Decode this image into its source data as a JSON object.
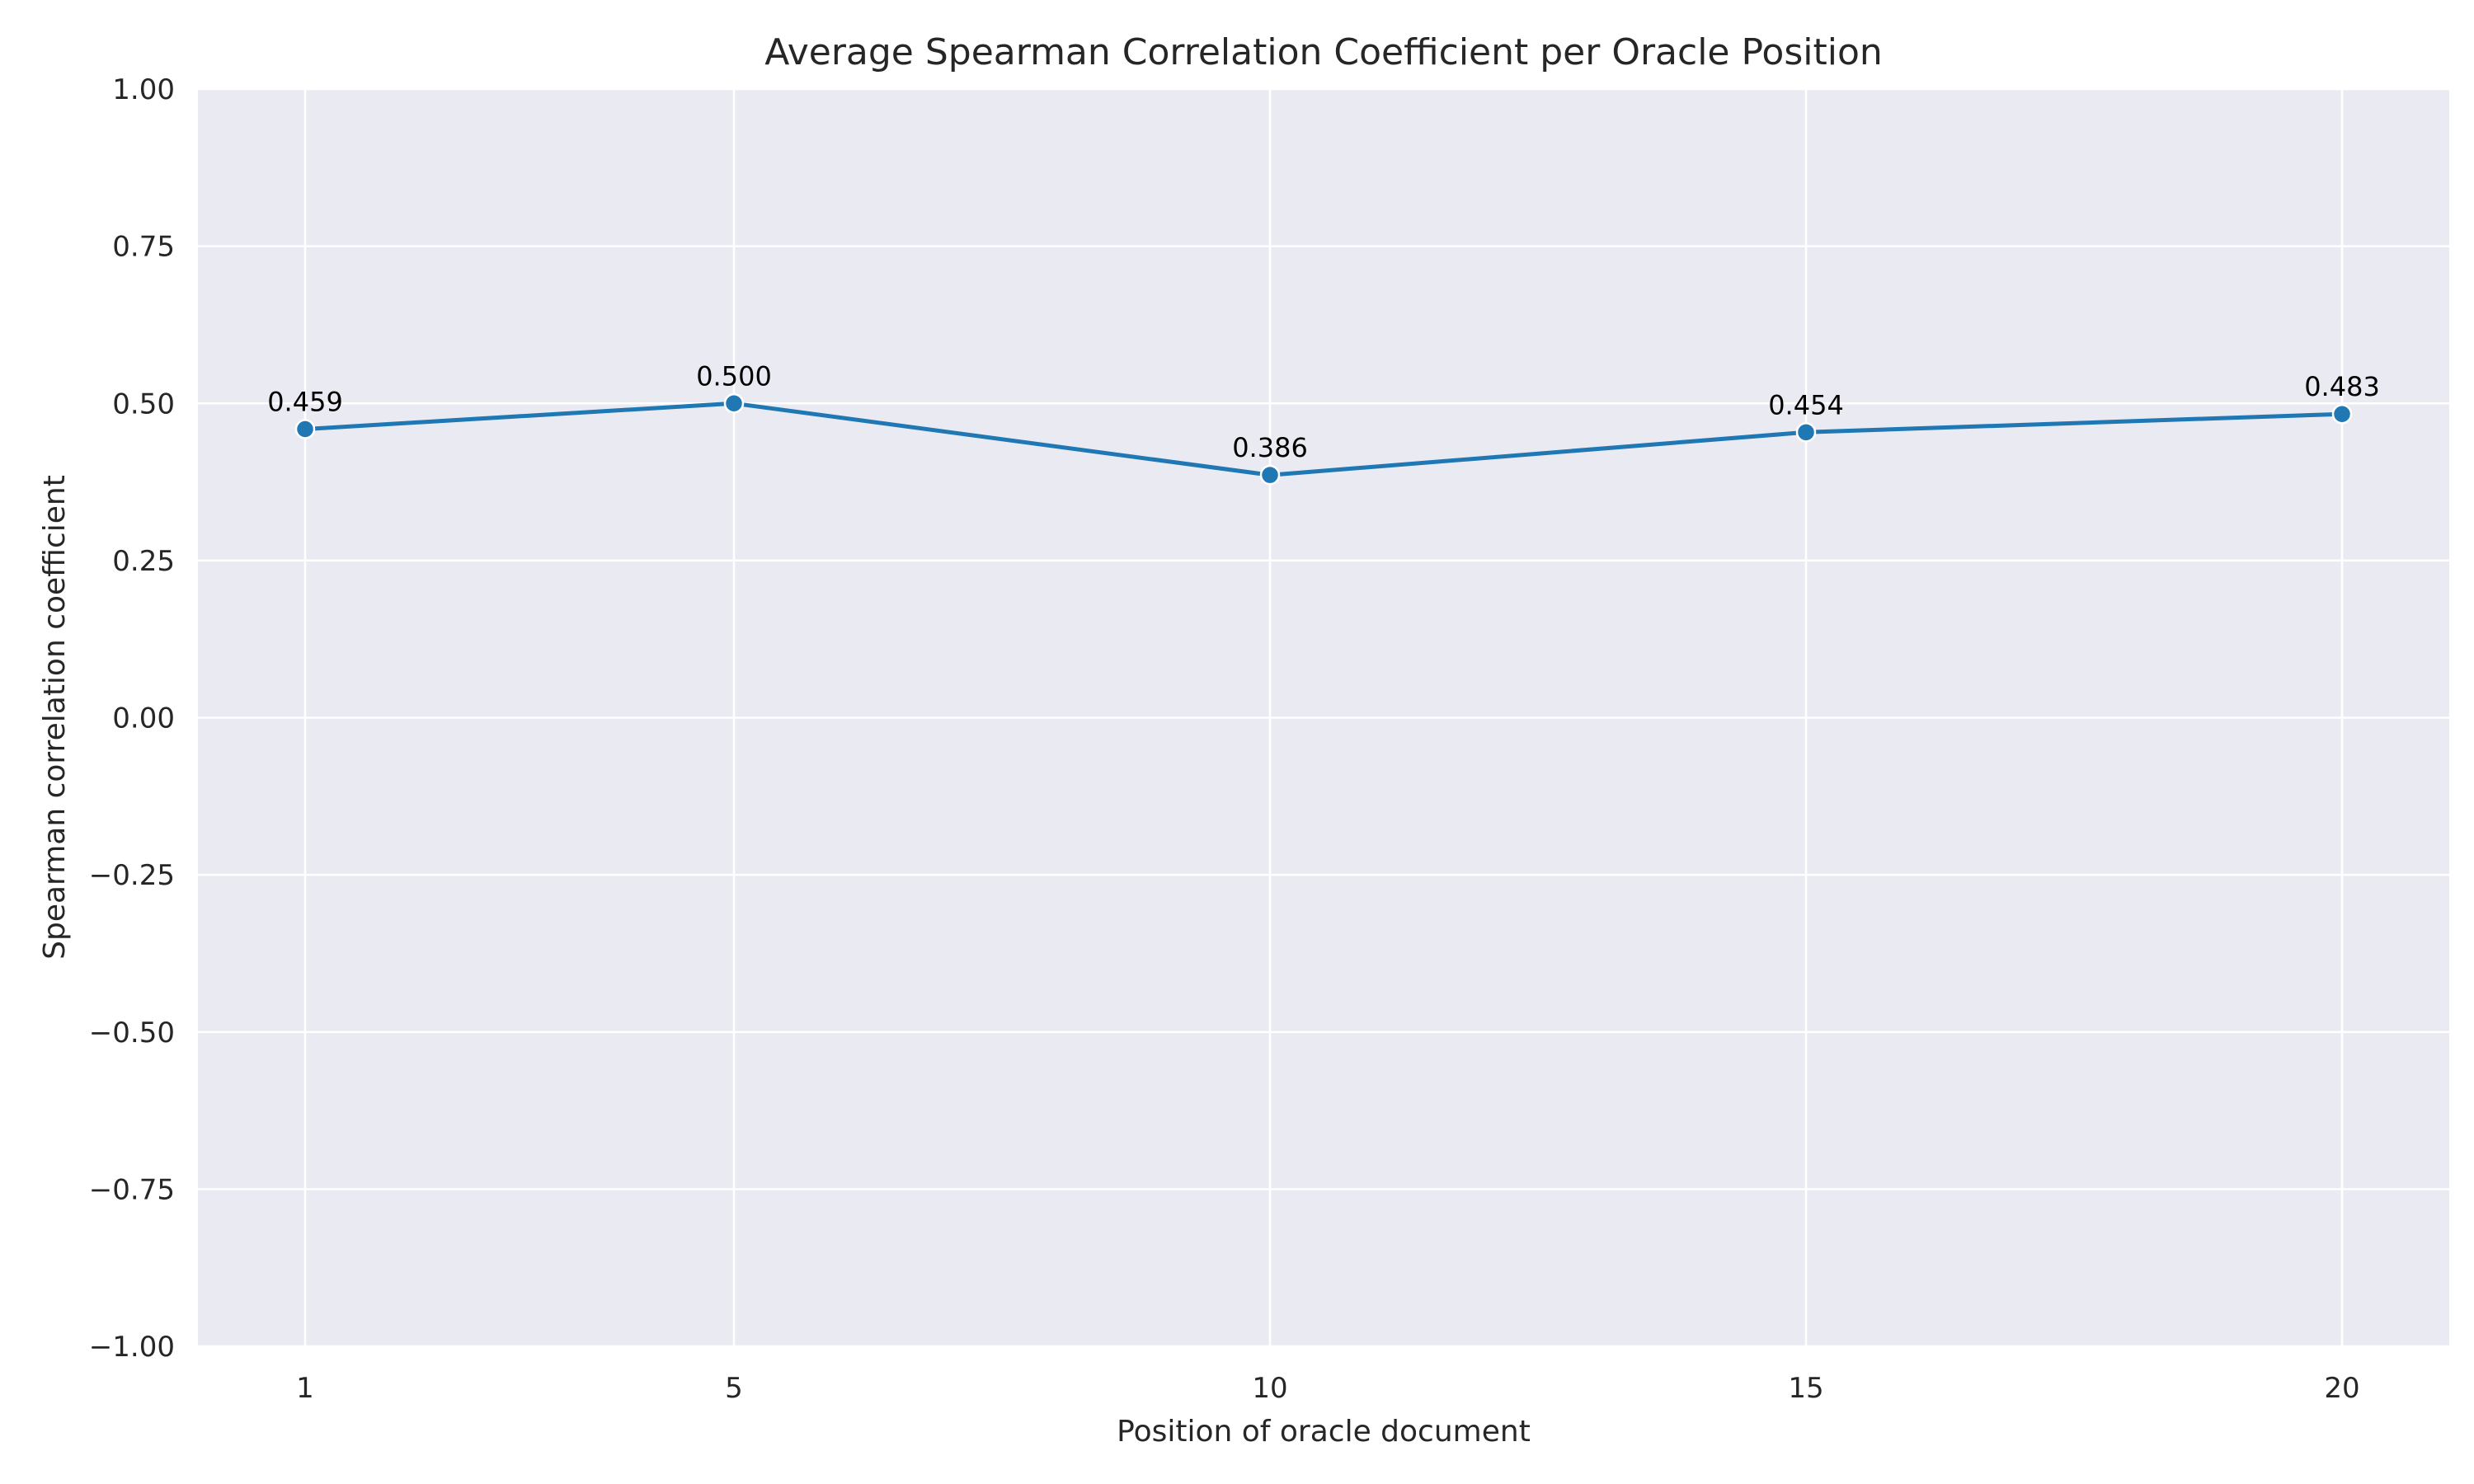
{
  "chart_data": {
    "type": "line",
    "title": "Average Spearman Correlation Coefficient per Oracle Position",
    "xlabel": "Position of oracle document",
    "ylabel": "Spearman correlation coefficient",
    "x": [
      1,
      5,
      10,
      15,
      20
    ],
    "x_tick_labels": [
      "1",
      "5",
      "10",
      "15",
      "20"
    ],
    "series": [
      {
        "values": [
          0.459,
          0.5,
          0.386,
          0.454,
          0.483
        ],
        "data_labels": [
          "0.459",
          "0.500",
          "0.386",
          "0.454",
          "0.483"
        ]
      }
    ],
    "ylim": [
      -1.0,
      1.0
    ],
    "y_ticks": [
      1.0,
      0.75,
      0.5,
      0.25,
      0.0,
      -0.25,
      -0.5,
      -0.75,
      -1.0
    ],
    "y_tick_labels": [
      "1.00",
      "0.75",
      "0.50",
      "0.25",
      "0.00",
      "−0.25",
      "−0.50",
      "−0.75",
      "−1.00"
    ],
    "grid": true,
    "legend": "none",
    "colors": {
      "line": "#1f77b4",
      "marker_edge": "#ffffff",
      "plot_background": "#eaeaf2",
      "grid": "#ffffff"
    }
  }
}
